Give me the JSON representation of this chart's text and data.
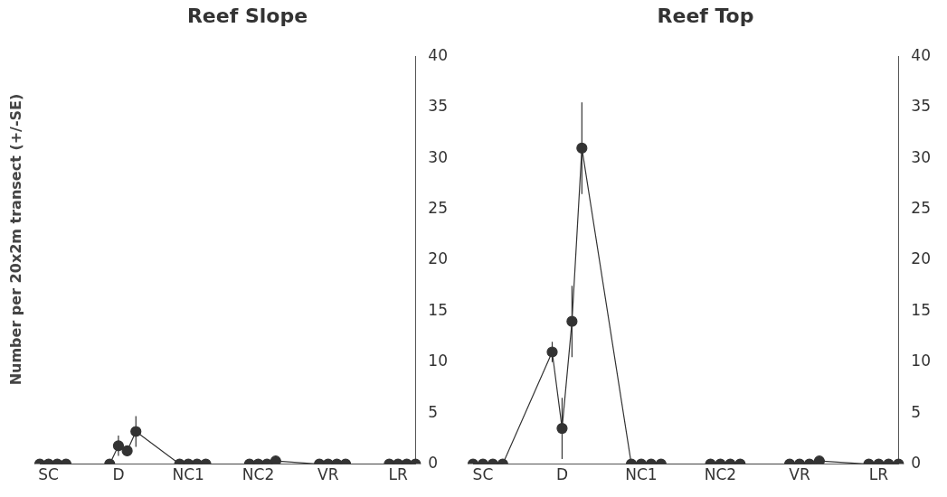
{
  "chart_data": [
    {
      "type": "line",
      "title": "Reef Slope",
      "ylabel": "Number per 20x2m transect (+/-SE)",
      "categories": [
        null,
        "SC",
        null,
        null,
        null,
        null,
        null,
        null,
        null,
        "D",
        null,
        null,
        null,
        null,
        null,
        null,
        null,
        "NC1",
        null,
        null,
        null,
        null,
        null,
        null,
        null,
        "NC2",
        null,
        null,
        null,
        null,
        null,
        null,
        null,
        "VR",
        null,
        null,
        null,
        null,
        null,
        null,
        null,
        "LR",
        null,
        null
      ],
      "series": [
        {
          "color": "#333333",
          "values": [
            0,
            0,
            0,
            0,
            null,
            null,
            null,
            null,
            0,
            1.8,
            1.3,
            3.2,
            null,
            null,
            null,
            null,
            0,
            0,
            0,
            0,
            null,
            null,
            null,
            null,
            0,
            0,
            0,
            0.3,
            null,
            null,
            null,
            null,
            0,
            0,
            0,
            0,
            null,
            null,
            null,
            null,
            0,
            0,
            0,
            0
          ],
          "errors": [
            null,
            null,
            null,
            null,
            null,
            null,
            null,
            null,
            null,
            1,
            0.5,
            1.5,
            null,
            null,
            null,
            null,
            null,
            null,
            null,
            null,
            null,
            null,
            null,
            null,
            null,
            null,
            null,
            null,
            null,
            null,
            null,
            null,
            null,
            null,
            null,
            null,
            null,
            null,
            null,
            null,
            null,
            null,
            null,
            null
          ]
        }
      ],
      "ylim": [
        0,
        40
      ],
      "yticks": [
        0,
        5,
        10,
        15,
        20,
        25,
        30,
        35,
        40
      ],
      "grid": false,
      "legend": false,
      "marker": "circle",
      "line_style": "solid"
    },
    {
      "type": "line",
      "title": "Reef Top",
      "categories": [
        null,
        "SC",
        null,
        null,
        null,
        null,
        null,
        null,
        null,
        "D",
        null,
        null,
        null,
        null,
        null,
        null,
        null,
        "NC1",
        null,
        null,
        null,
        null,
        null,
        null,
        null,
        "NC2",
        null,
        null,
        null,
        null,
        null,
        null,
        null,
        "VR",
        null,
        null,
        null,
        null,
        null,
        null,
        null,
        "LR",
        null,
        null
      ],
      "series": [
        {
          "color": "#333333",
          "values": [
            0,
            0,
            0,
            0,
            null,
            null,
            null,
            null,
            11,
            3.5,
            14,
            31,
            null,
            null,
            null,
            null,
            0,
            0,
            0,
            0,
            null,
            null,
            null,
            null,
            0,
            0,
            0,
            0,
            null,
            null,
            null,
            null,
            0,
            0,
            0,
            0.3,
            null,
            null,
            null,
            null,
            0,
            0,
            0,
            0
          ],
          "errors": [
            null,
            null,
            null,
            null,
            null,
            null,
            null,
            null,
            1,
            3,
            3.5,
            4.5,
            null,
            null,
            null,
            null,
            null,
            null,
            null,
            null,
            null,
            null,
            null,
            null,
            null,
            null,
            null,
            null,
            null,
            null,
            null,
            null,
            null,
            null,
            null,
            null,
            null,
            null,
            null,
            null,
            null,
            null,
            null,
            null
          ]
        }
      ],
      "ylim": [
        0,
        40
      ],
      "yticks": [
        0,
        5,
        10,
        15,
        20,
        25,
        30,
        35,
        40
      ],
      "grid": false,
      "legend": false,
      "marker": "circle",
      "line_style": "solid"
    }
  ]
}
